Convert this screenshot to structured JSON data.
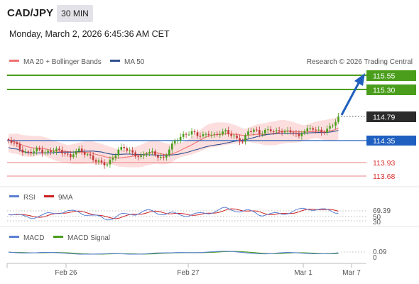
{
  "header": {
    "symbol": "CAD/JPY",
    "interval": "30 MIN",
    "datetime": "Monday, March 2, 2026 6:45:36 AM CET"
  },
  "legend": {
    "ma20": "MA 20 + Bollinger Bands",
    "ma50": "MA 50",
    "research": "Research © 2026 Trading Central"
  },
  "colors": {
    "green": "#4a9e1c",
    "blue": "#1f5fbf",
    "red": "#d93030",
    "current": "#2b2b2b",
    "ma20": "#f07070",
    "ma50": "#2f4f8f",
    "band": "#fbd8d8",
    "rsi": "#5b7fd4",
    "rsi_ma": "#cc1f1f",
    "macd": "#5b7fd4",
    "macd_signal": "#4a9e1c"
  },
  "price_levels": {
    "r2": "115.55",
    "r1": "115.30",
    "current": "114.79",
    "pivot": "114.35",
    "s1": "113.93",
    "s2": "113.68"
  },
  "rsi_panel": {
    "rsi_label": "RSI",
    "ma_label": "9MA",
    "value": "69.39",
    "lvl_70": "70",
    "lvl_50": "50",
    "lvl_30": "30"
  },
  "macd_panel": {
    "macd_label": "MACD",
    "signal_label": "MACD Signal",
    "value": "0.09",
    "zero": "0"
  },
  "x_axis": [
    "Feb 26",
    "Feb 27",
    "Mar 1",
    "Mar 7"
  ]
}
